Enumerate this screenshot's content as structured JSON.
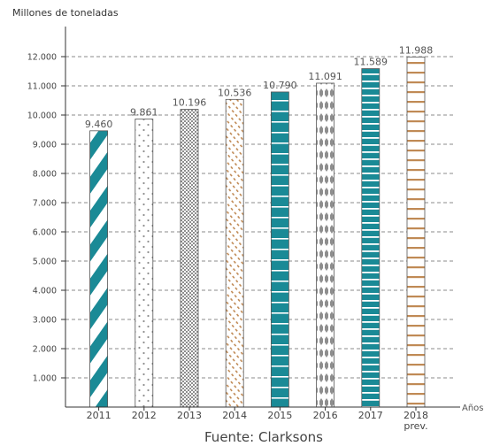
{
  "chart_data": {
    "type": "bar",
    "ylabel": "Millones de toneladas",
    "xlabel": "Años",
    "source": "Fuente: Clarksons",
    "ylim": [
      0,
      12500
    ],
    "grid": true,
    "yticks": [
      {
        "value": 1000,
        "label": "1.000"
      },
      {
        "value": 2000,
        "label": "2.000"
      },
      {
        "value": 3000,
        "label": "3.000"
      },
      {
        "value": 4000,
        "label": "4.000"
      },
      {
        "value": 5000,
        "label": "5.000"
      },
      {
        "value": 6000,
        "label": "6.000"
      },
      {
        "value": 7000,
        "label": "7.000"
      },
      {
        "value": 8000,
        "label": "8.000"
      },
      {
        "value": 9000,
        "label": "9.000"
      },
      {
        "value": 10000,
        "label": "10.000"
      },
      {
        "value": 11000,
        "label": "11.000"
      },
      {
        "value": 12000,
        "label": "12.000"
      }
    ],
    "categories": [
      {
        "label": "2011",
        "sublabel": ""
      },
      {
        "label": "2012",
        "sublabel": ""
      },
      {
        "label": "2013",
        "sublabel": ""
      },
      {
        "label": "2014",
        "sublabel": ""
      },
      {
        "label": "2015",
        "sublabel": ""
      },
      {
        "label": "2016",
        "sublabel": ""
      },
      {
        "label": "2017",
        "sublabel": ""
      },
      {
        "label": "2018",
        "sublabel": "prev."
      }
    ],
    "values": [
      9460,
      9861,
      10196,
      10536,
      10790,
      11091,
      11589,
      11988
    ],
    "value_labels": [
      "9.460",
      "9.861",
      "10.196",
      "10.536",
      "10.790",
      "11.091",
      "11.589",
      "11.988"
    ],
    "patterns": [
      "diagonal-stripes-teal",
      "dots-grey",
      "checker-grey",
      "diagonal-dashes-orange",
      "teal-white-cross-grid",
      "grey-crosses",
      "teal-white-horizontal-lines",
      "orange-lattice"
    ],
    "colors": {
      "teal": "#1a8a96",
      "grey": "#8e8e8e",
      "orange": "#c08a55",
      "grid": "#666666",
      "axis": "#333333"
    }
  }
}
